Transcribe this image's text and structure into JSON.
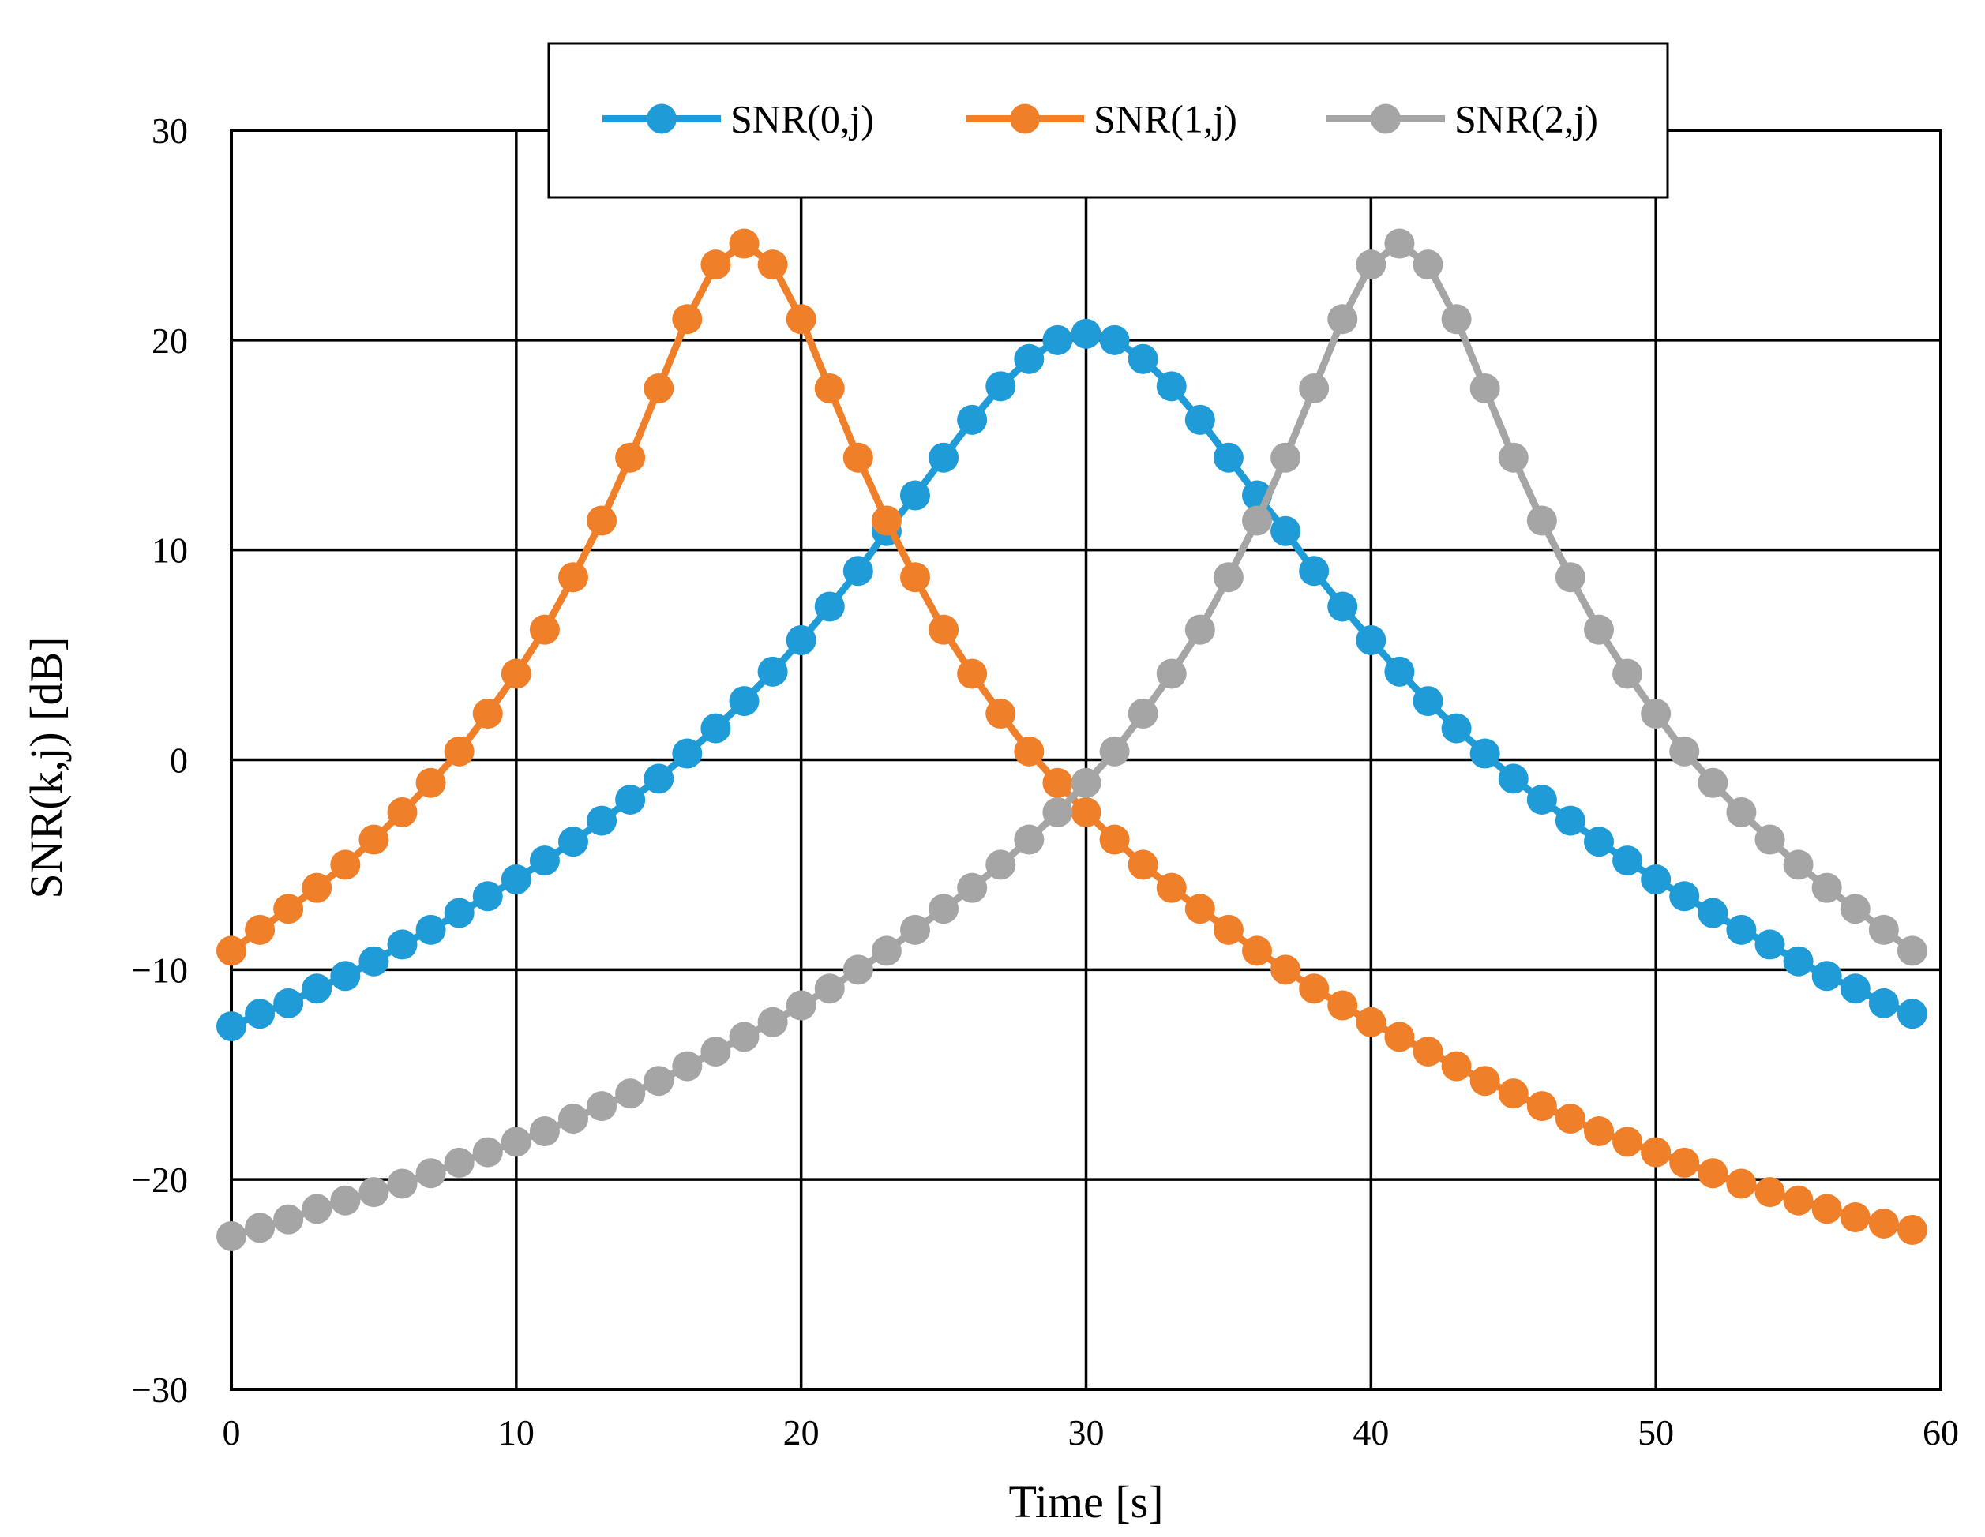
{
  "chart_data": {
    "type": "line",
    "title": "",
    "xlabel": "Time [s]",
    "ylabel": "SNR(k,j) [dB]",
    "xlim": [
      0,
      60
    ],
    "ylim": [
      -30,
      30
    ],
    "xticks": [
      0,
      10,
      20,
      30,
      40,
      50,
      60
    ],
    "yticks": [
      -30,
      -20,
      -10,
      0,
      10,
      20,
      30
    ],
    "xtick_labels": [
      "0",
      "10",
      "20",
      "30",
      "40",
      "50",
      "60"
    ],
    "ytick_labels": [
      "−30",
      "−20",
      "−10",
      "0",
      "10",
      "20",
      "30"
    ],
    "grid": true,
    "legend_position": "top-center",
    "x": [
      0,
      1,
      2,
      3,
      4,
      5,
      6,
      7,
      8,
      9,
      10,
      11,
      12,
      13,
      14,
      15,
      16,
      17,
      18,
      19,
      20,
      21,
      22,
      23,
      24,
      25,
      26,
      27,
      28,
      29,
      30,
      31,
      32,
      33,
      34,
      35,
      36,
      37,
      38,
      39,
      40,
      41,
      42,
      43,
      44,
      45,
      46,
      47,
      48,
      49,
      50,
      51,
      52,
      53,
      54,
      55,
      56,
      57,
      58,
      59
    ],
    "series": [
      {
        "name": "SNR(0,j)",
        "color": "#1f9bd7",
        "values": [
          -12.7,
          -12.1,
          -11.6,
          -10.9,
          -10.3,
          -9.6,
          -8.8,
          -8.1,
          -7.3,
          -6.5,
          -5.7,
          -4.8,
          -3.9,
          -2.9,
          -1.9,
          -0.9,
          0.3,
          1.5,
          2.8,
          4.2,
          5.7,
          7.3,
          9.0,
          10.9,
          12.6,
          14.4,
          16.2,
          17.8,
          19.1,
          20.0,
          20.3,
          20.0,
          19.1,
          17.8,
          16.2,
          14.4,
          12.6,
          10.9,
          9.0,
          7.3,
          5.7,
          4.2,
          2.8,
          1.5,
          0.3,
          -0.9,
          -1.9,
          -2.9,
          -3.9,
          -4.8,
          -5.7,
          -6.5,
          -7.3,
          -8.1,
          -8.8,
          -9.6,
          -10.3,
          -10.9,
          -11.6,
          -12.1
        ]
      },
      {
        "name": "SNR(1,j)",
        "color": "#f07f2a",
        "values": [
          -9.1,
          -8.1,
          -7.1,
          -6.1,
          -5.0,
          -3.8,
          -2.5,
          -1.1,
          0.4,
          2.2,
          4.1,
          6.2,
          8.7,
          11.4,
          14.4,
          17.7,
          21.0,
          23.6,
          24.6,
          23.6,
          21.0,
          17.7,
          14.4,
          11.4,
          8.7,
          6.2,
          4.1,
          2.2,
          0.4,
          -1.1,
          -2.5,
          -3.8,
          -5.0,
          -6.1,
          -7.1,
          -8.1,
          -9.1,
          -10.0,
          -10.9,
          -11.7,
          -12.5,
          -13.2,
          -13.9,
          -14.6,
          -15.3,
          -15.9,
          -16.5,
          -17.1,
          -17.7,
          -18.2,
          -18.7,
          -19.2,
          -19.7,
          -20.2,
          -20.6,
          -21.0,
          -21.4,
          -21.8,
          -22.1,
          -22.4
        ]
      },
      {
        "name": "SNR(2,j)",
        "color": "#a5a5a5",
        "values": [
          -22.7,
          -22.3,
          -21.9,
          -21.4,
          -21.0,
          -20.6,
          -20.2,
          -19.7,
          -19.2,
          -18.7,
          -18.2,
          -17.7,
          -17.1,
          -16.5,
          -15.9,
          -15.3,
          -14.6,
          -13.9,
          -13.2,
          -12.5,
          -11.7,
          -10.9,
          -10.0,
          -9.1,
          -8.1,
          -7.1,
          -6.1,
          -5.0,
          -3.8,
          -2.5,
          -1.1,
          0.4,
          2.2,
          4.1,
          6.2,
          8.7,
          11.4,
          14.4,
          17.7,
          21.0,
          23.6,
          24.6,
          23.6,
          21.0,
          17.7,
          14.4,
          11.4,
          8.7,
          6.2,
          4.1,
          2.2,
          0.4,
          -1.1,
          -2.5,
          -3.8,
          -5.0,
          -6.1,
          -7.1,
          -8.1,
          -9.1
        ]
      }
    ]
  }
}
